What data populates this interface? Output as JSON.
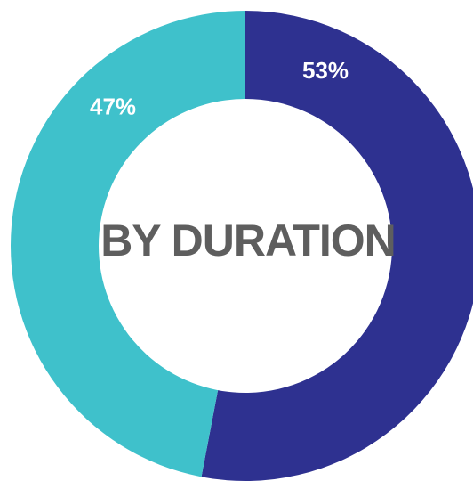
{
  "chart_data": {
    "type": "pie",
    "title": "BY DURATION",
    "slices": [
      {
        "value": 53,
        "label": "53%",
        "color": "#2e3190"
      },
      {
        "value": 47,
        "label": "47%",
        "color": "#3fc1cb"
      }
    ],
    "legend": "none"
  }
}
